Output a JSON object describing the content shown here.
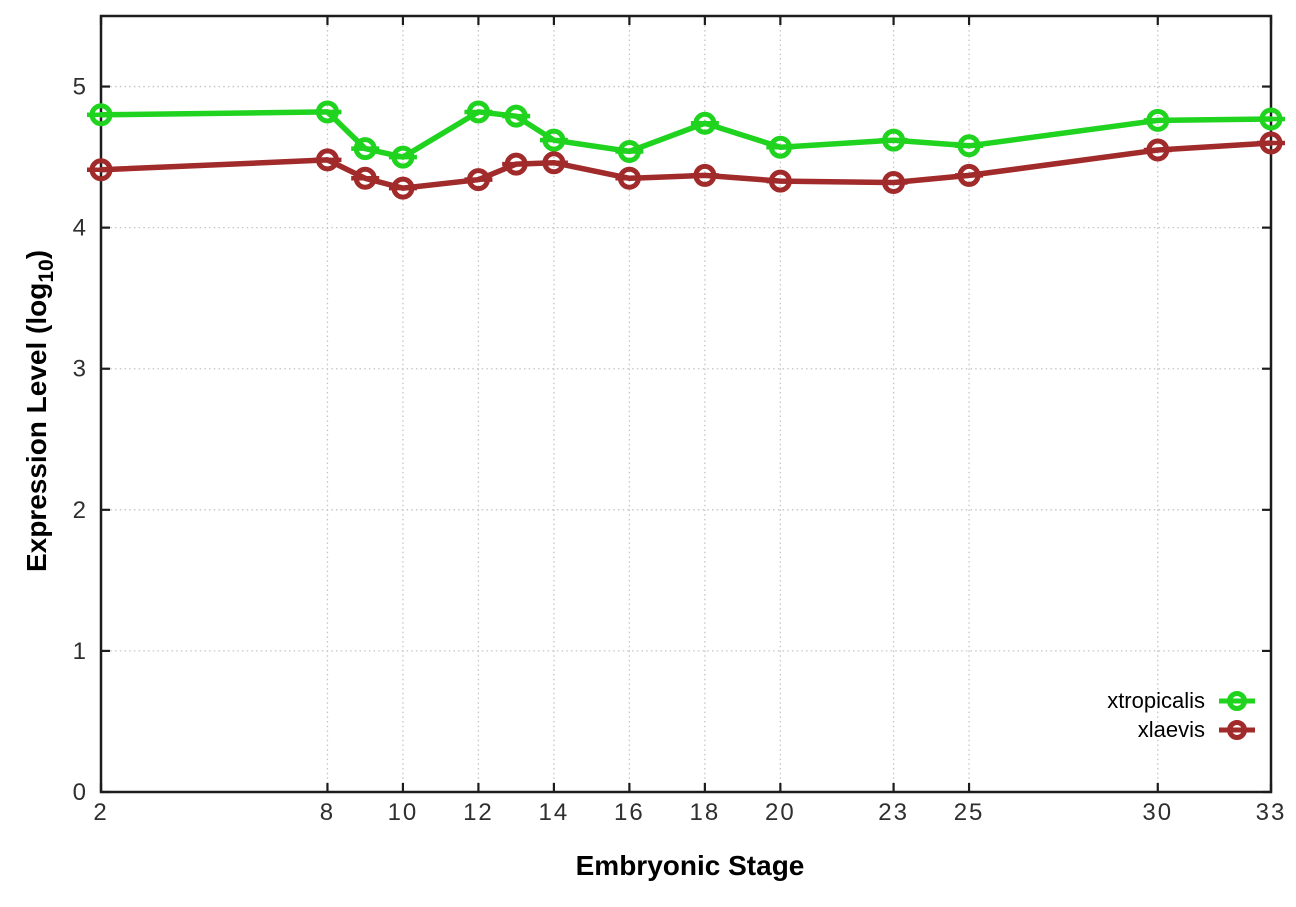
{
  "chart_data": {
    "type": "line",
    "title": "",
    "xlabel": "Embryonic Stage",
    "ylabel": "Expression Level (log10)",
    "ylabel_parts": {
      "main": "Expression Level (log",
      "sub": "10",
      "close": ")"
    },
    "xlim": [
      2,
      33
    ],
    "ylim": [
      0,
      5.5
    ],
    "grid": true,
    "legend_position": "inside-bottom-right",
    "x_ticks": [
      2,
      8,
      10,
      12,
      14,
      16,
      18,
      20,
      23,
      25,
      30,
      33
    ],
    "x_tick_labels": [
      "2",
      "8",
      "10",
      "12",
      "14",
      "16",
      "18",
      "20",
      "23",
      "25",
      "30",
      "33"
    ],
    "y_ticks": [
      0,
      1,
      2,
      3,
      4,
      5
    ],
    "y_tick_labels": [
      "0",
      "1",
      "2",
      "3",
      "4",
      "5"
    ],
    "x": [
      2,
      8,
      9,
      10,
      12,
      13,
      14,
      16,
      18,
      20,
      23,
      25,
      30,
      33
    ],
    "series": [
      {
        "name": "xtropicalis",
        "color": "#1fd31f",
        "marker": "open-circle-with-errorbar",
        "values": [
          4.8,
          4.82,
          4.56,
          4.5,
          4.82,
          4.79,
          4.62,
          4.54,
          4.74,
          4.57,
          4.62,
          4.58,
          4.76,
          4.77
        ]
      },
      {
        "name": "xlaevis",
        "color": "#a12a2a",
        "marker": "open-circle-with-errorbar",
        "values": [
          4.41,
          4.48,
          4.35,
          4.28,
          4.34,
          4.45,
          4.46,
          4.35,
          4.37,
          4.33,
          4.32,
          4.37,
          4.55,
          4.6
        ]
      }
    ],
    "style": {
      "border_color": "#1c1c1c",
      "grid_color": "#c4c4c4",
      "tick_label_color": "#2f2f2f",
      "background": "#ffffff"
    }
  }
}
